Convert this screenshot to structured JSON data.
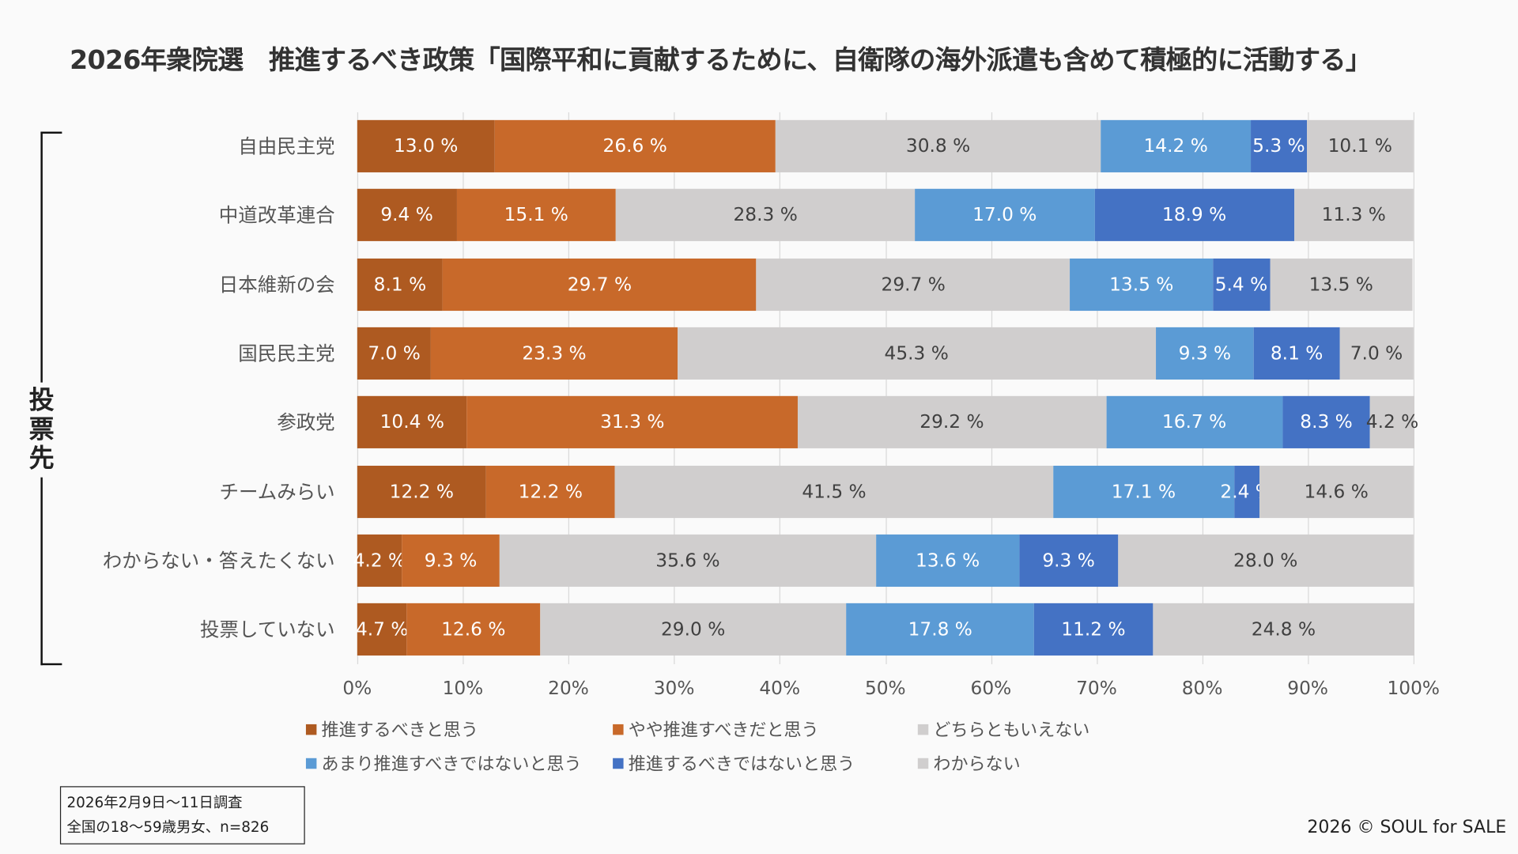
{
  "chart_data": {
    "type": "bar",
    "orientation": "horizontal-stacked-100",
    "title": "2026年衆院選　推進するべき政策「国際平和に貢献するために、自衛隊の海外派遣も含めて積極的に活動する」",
    "ylabel": "投票先",
    "xlim": [
      0,
      100
    ],
    "xticks": [
      "0%",
      "10%",
      "20%",
      "30%",
      "40%",
      "50%",
      "60%",
      "70%",
      "80%",
      "90%",
      "100%"
    ],
    "categories": [
      "自由民主党",
      "中道改革連合",
      "日本維新の会",
      "国民民主党",
      "参政党",
      "チームみらい",
      "わからない・答えたくない",
      "投票していない"
    ],
    "series": [
      {
        "name": "推進するべきと思う",
        "color": "#ae5a21",
        "text_color": "#ffffff",
        "values": [
          13.0,
          9.4,
          8.1,
          7.0,
          10.4,
          12.2,
          4.2,
          4.7
        ]
      },
      {
        "name": "やや推進すべきだと思う",
        "color": "#c8692a",
        "text_color": "#ffffff",
        "values": [
          26.6,
          15.1,
          29.7,
          23.3,
          31.3,
          12.2,
          9.3,
          12.6
        ]
      },
      {
        "name": "どちらともいえない",
        "color": "#d0cece",
        "text_color": "#404040",
        "values": [
          30.8,
          28.3,
          29.7,
          45.3,
          29.2,
          41.5,
          35.6,
          29.0
        ]
      },
      {
        "name": "あまり推進すべきではないと思う",
        "color": "#5b9bd5",
        "text_color": "#ffffff",
        "values": [
          14.2,
          17.0,
          13.5,
          9.3,
          16.7,
          17.1,
          13.6,
          17.8
        ]
      },
      {
        "name": "推進するべきではないと思う",
        "color": "#4472c4",
        "text_color": "#ffffff",
        "values": [
          5.3,
          18.9,
          5.4,
          8.1,
          8.3,
          2.4,
          9.3,
          11.2
        ]
      },
      {
        "name": "わからない",
        "color": "#d0cece",
        "text_color": "#404040",
        "values": [
          10.1,
          11.3,
          13.5,
          7.0,
          4.2,
          14.6,
          28.0,
          24.8
        ]
      }
    ],
    "legend": "bottom",
    "grid": true
  },
  "note": {
    "line1": "2026年2月9日〜11日調査",
    "line2": "全国の18〜59歳男女、n=826"
  },
  "copyright": "2026 © SOUL for SALE"
}
